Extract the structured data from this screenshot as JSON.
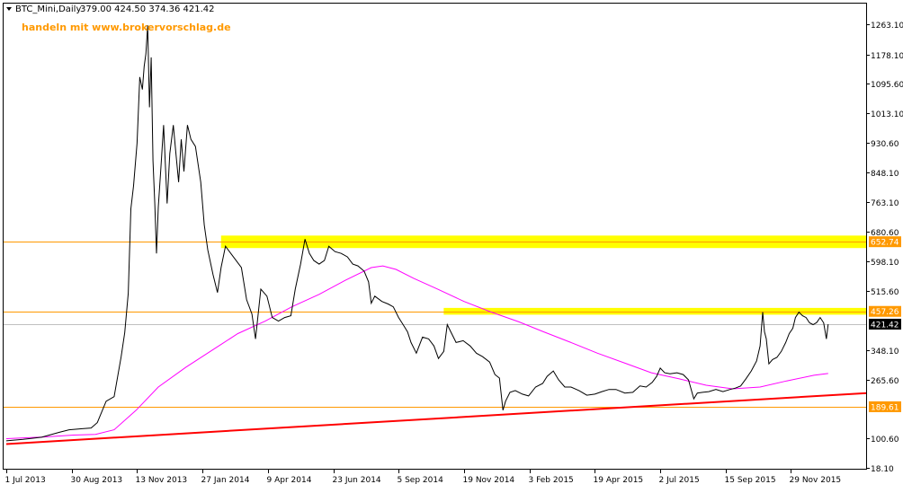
{
  "header": {
    "symbol_label": "BTC_Mini,Daily",
    "ohlc": "379.00 424.50 374.36 421.42",
    "watermark": "handeln mit www.brokervorschlag.de"
  },
  "colors": {
    "price_line": "#000000",
    "moving_average": "#ff00ff",
    "trend_line": "#ff0000",
    "level_line": "#ff9900",
    "zone_fill": "#ffff00",
    "label_orange": "#ff9900",
    "label_black": "#000000",
    "grid_frame": "#000000"
  },
  "chart_data": {
    "type": "line",
    "title": "BTC_Mini,Daily",
    "x_tick_labels": [
      "1 Jul 2013",
      "30 Aug 2013",
      "13 Nov 2013",
      "27 Jan 2014",
      "9 Apr 2014",
      "23 Jun 2014",
      "5 Sep 2014",
      "19 Nov 2014",
      "3 Feb 2015",
      "19 Apr 2015",
      "2 Jul 2015",
      "15 Sep 2015",
      "29 Nov 2015"
    ],
    "y_tick_labels": [
      "1263.10",
      "1178.10",
      "1095.60",
      "1013.10",
      "930.60",
      "848.10",
      "763.10",
      "680.60",
      "598.10",
      "515.60",
      "348.10",
      "265.60",
      "100.60",
      "18.10"
    ],
    "ylim": [
      18.1,
      1300
    ],
    "series": [
      {
        "values": [
          [
            "2013-07-01",
            94
          ],
          [
            "2013-07-20",
            98
          ],
          [
            "2013-08-10",
            104
          ],
          [
            "2013-08-30",
            118
          ],
          [
            "2013-09-10",
            125
          ],
          [
            "2013-09-25",
            128
          ],
          [
            "2013-10-05",
            130
          ],
          [
            "2013-10-12",
            145
          ],
          [
            "2013-10-22",
            205
          ],
          [
            "2013-10-31",
            218
          ],
          [
            "2013-11-08",
            330
          ],
          [
            "2013-11-12",
            398
          ],
          [
            "2013-11-16",
            508
          ],
          [
            "2013-11-19",
            745
          ],
          [
            "2013-11-22",
            810
          ],
          [
            "2013-11-26",
            930
          ],
          [
            "2013-11-29",
            1115
          ],
          [
            "2013-12-02",
            1080
          ],
          [
            "2013-12-04",
            1145
          ],
          [
            "2013-12-06",
            1180
          ],
          [
            "2013-12-08",
            1260
          ],
          [
            "2013-12-10",
            1030
          ],
          [
            "2013-12-12",
            1170
          ],
          [
            "2013-12-14",
            880
          ],
          [
            "2013-12-16",
            760
          ],
          [
            "2013-12-18",
            620
          ],
          [
            "2013-12-20",
            750
          ],
          [
            "2013-12-23",
            860
          ],
          [
            "2013-12-26",
            980
          ],
          [
            "2013-12-30",
            760
          ],
          [
            "2014-01-02",
            900
          ],
          [
            "2014-01-06",
            980
          ],
          [
            "2014-01-09",
            900
          ],
          [
            "2014-01-12",
            820
          ],
          [
            "2014-01-15",
            940
          ],
          [
            "2014-01-18",
            850
          ],
          [
            "2014-01-22",
            980
          ],
          [
            "2014-01-26",
            940
          ],
          [
            "2014-01-31",
            920
          ],
          [
            "2014-02-06",
            820
          ],
          [
            "2014-02-10",
            700
          ],
          [
            "2014-02-14",
            630
          ],
          [
            "2014-02-20",
            560
          ],
          [
            "2014-02-25",
            510
          ],
          [
            "2014-03-01",
            580
          ],
          [
            "2014-03-06",
            640
          ],
          [
            "2014-03-12",
            620
          ],
          [
            "2014-03-18",
            600
          ],
          [
            "2014-03-24",
            580
          ],
          [
            "2014-03-30",
            490
          ],
          [
            "2014-04-05",
            450
          ],
          [
            "2014-04-09",
            380
          ],
          [
            "2014-04-15",
            520
          ],
          [
            "2014-04-22",
            500
          ],
          [
            "2014-04-28",
            440
          ],
          [
            "2014-05-05",
            430
          ],
          [
            "2014-05-12",
            440
          ],
          [
            "2014-05-19",
            445
          ],
          [
            "2014-05-24",
            520
          ],
          [
            "2014-05-30",
            590
          ],
          [
            "2014-06-04",
            660
          ],
          [
            "2014-06-09",
            620
          ],
          [
            "2014-06-14",
            600
          ],
          [
            "2014-06-20",
            590
          ],
          [
            "2014-06-26",
            600
          ],
          [
            "2014-07-01",
            640
          ],
          [
            "2014-07-08",
            625
          ],
          [
            "2014-07-15",
            620
          ],
          [
            "2014-07-22",
            610
          ],
          [
            "2014-07-28",
            590
          ],
          [
            "2014-08-03",
            585
          ],
          [
            "2014-08-10",
            570
          ],
          [
            "2014-08-15",
            540
          ],
          [
            "2014-08-18",
            480
          ],
          [
            "2014-08-22",
            500
          ],
          [
            "2014-08-30",
            485
          ],
          [
            "2014-09-06",
            478
          ],
          [
            "2014-09-12",
            470
          ],
          [
            "2014-09-18",
            440
          ],
          [
            "2014-09-23",
            420
          ],
          [
            "2014-09-28",
            400
          ],
          [
            "2014-10-02",
            370
          ],
          [
            "2014-10-08",
            340
          ],
          [
            "2014-10-15",
            385
          ],
          [
            "2014-10-22",
            380
          ],
          [
            "2014-10-28",
            360
          ],
          [
            "2014-11-02",
            325
          ],
          [
            "2014-11-08",
            345
          ],
          [
            "2014-11-12",
            420
          ],
          [
            "2014-11-16",
            400
          ],
          [
            "2014-11-22",
            370
          ],
          [
            "2014-11-30",
            375
          ],
          [
            "2014-12-08",
            360
          ],
          [
            "2014-12-15",
            340
          ],
          [
            "2014-12-22",
            330
          ],
          [
            "2014-12-30",
            315
          ],
          [
            "2015-01-05",
            280
          ],
          [
            "2015-01-10",
            270
          ],
          [
            "2015-01-14",
            180
          ],
          [
            "2015-01-17",
            205
          ],
          [
            "2015-01-22",
            230
          ],
          [
            "2015-01-28",
            235
          ],
          [
            "2015-02-05",
            225
          ],
          [
            "2015-02-12",
            220
          ],
          [
            "2015-02-20",
            245
          ],
          [
            "2015-02-28",
            255
          ],
          [
            "2015-03-05",
            275
          ],
          [
            "2015-03-12",
            290
          ],
          [
            "2015-03-18",
            265
          ],
          [
            "2015-03-25",
            245
          ],
          [
            "2015-04-01",
            245
          ],
          [
            "2015-04-10",
            235
          ],
          [
            "2015-04-19",
            222
          ],
          [
            "2015-04-28",
            225
          ],
          [
            "2015-05-06",
            232
          ],
          [
            "2015-05-14",
            238
          ],
          [
            "2015-05-22",
            238
          ],
          [
            "2015-06-01",
            228
          ],
          [
            "2015-06-10",
            230
          ],
          [
            "2015-06-18",
            248
          ],
          [
            "2015-06-25",
            245
          ],
          [
            "2015-07-02",
            258
          ],
          [
            "2015-07-07",
            275
          ],
          [
            "2015-07-11",
            298
          ],
          [
            "2015-07-16",
            285
          ],
          [
            "2015-07-22",
            282
          ],
          [
            "2015-07-30",
            285
          ],
          [
            "2015-08-06",
            280
          ],
          [
            "2015-08-12",
            265
          ],
          [
            "2015-08-18",
            212
          ],
          [
            "2015-08-22",
            228
          ],
          [
            "2015-08-28",
            230
          ],
          [
            "2015-09-04",
            232
          ],
          [
            "2015-09-12",
            238
          ],
          [
            "2015-09-20",
            232
          ],
          [
            "2015-09-28",
            238
          ],
          [
            "2015-10-04",
            242
          ],
          [
            "2015-10-10",
            248
          ],
          [
            "2015-10-16",
            268
          ],
          [
            "2015-10-22",
            290
          ],
          [
            "2015-10-28",
            318
          ],
          [
            "2015-11-01",
            360
          ],
          [
            "2015-11-04",
            455
          ],
          [
            "2015-11-06",
            400
          ],
          [
            "2015-11-08",
            380
          ],
          [
            "2015-11-11",
            310
          ],
          [
            "2015-11-15",
            322
          ],
          [
            "2015-11-20",
            328
          ],
          [
            "2015-11-25",
            345
          ],
          [
            "2015-11-30",
            370
          ],
          [
            "2015-12-04",
            395
          ],
          [
            "2015-12-08",
            410
          ],
          [
            "2015-12-11",
            440
          ],
          [
            "2015-12-15",
            455
          ],
          [
            "2015-12-19",
            445
          ],
          [
            "2015-12-23",
            440
          ],
          [
            "2015-12-27",
            425
          ],
          [
            "2015-12-31",
            420
          ],
          [
            "2016-01-04",
            426
          ],
          [
            "2016-01-08",
            440
          ],
          [
            "2016-01-12",
            425
          ],
          [
            "2016-01-15",
            380
          ],
          [
            "2016-01-17",
            421.42
          ]
        ]
      },
      {
        "values": [
          [
            "2013-07-01",
            100
          ],
          [
            "2013-08-15",
            105
          ],
          [
            "2013-09-15",
            110
          ],
          [
            "2013-10-10",
            112
          ],
          [
            "2013-10-31",
            125
          ],
          [
            "2013-11-25",
            180
          ],
          [
            "2013-12-20",
            245
          ],
          [
            "2014-01-20",
            300
          ],
          [
            "2014-02-20",
            350
          ],
          [
            "2014-03-20",
            395
          ],
          [
            "2014-04-20",
            430
          ],
          [
            "2014-05-20",
            470
          ],
          [
            "2014-06-20",
            505
          ],
          [
            "2014-07-20",
            545
          ],
          [
            "2014-08-18",
            580
          ],
          [
            "2014-08-31",
            585
          ],
          [
            "2014-09-15",
            575
          ],
          [
            "2014-10-05",
            550
          ],
          [
            "2014-11-01",
            520
          ],
          [
            "2014-12-01",
            485
          ],
          [
            "2015-01-01",
            455
          ],
          [
            "2015-02-01",
            428
          ],
          [
            "2015-03-01",
            400
          ],
          [
            "2015-04-01",
            370
          ],
          [
            "2015-05-01",
            340
          ],
          [
            "2015-06-01",
            312
          ],
          [
            "2015-07-01",
            285
          ],
          [
            "2015-08-01",
            268
          ],
          [
            "2015-09-01",
            250
          ],
          [
            "2015-10-01",
            240
          ],
          [
            "2015-11-01",
            245
          ],
          [
            "2015-12-01",
            262
          ],
          [
            "2016-01-01",
            278
          ],
          [
            "2016-01-17",
            283
          ]
        ]
      }
    ],
    "trend_line": {
      "start": [
        "2013-07-01",
        85
      ],
      "end": [
        "2016-03-01",
        228
      ]
    },
    "resistance_zones": [
      {
        "low": 635,
        "high": 670,
        "start": "2014-03-01",
        "label": "652.74"
      },
      {
        "low": 448,
        "high": 467,
        "start": "2014-11-08",
        "label": "457.26"
      }
    ],
    "horizontal_levels": [
      {
        "value": 652.74,
        "label": "652.74"
      },
      {
        "value": 457.26,
        "label": "457.26"
      },
      {
        "value": 189.61,
        "label": "189.61"
      }
    ],
    "current_price": {
      "value": 421.42,
      "label": "421.42"
    }
  }
}
